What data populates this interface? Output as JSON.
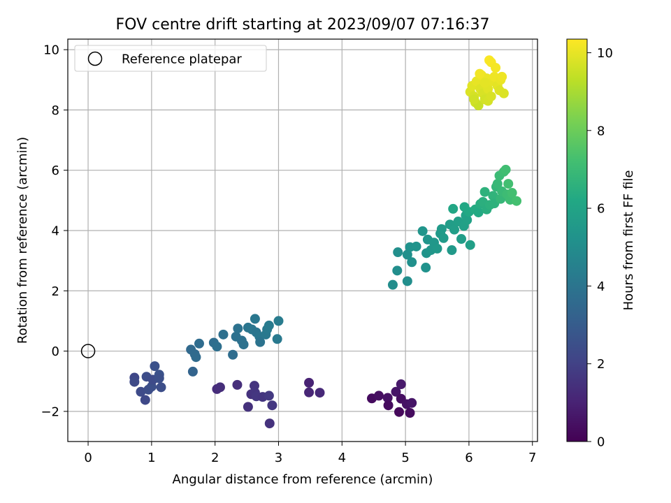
{
  "chart_data": {
    "type": "scatter",
    "title": "FOV centre drift starting at 2023/09/07 07:16:37",
    "xlabel": "Angular distance from reference (arcmin)",
    "ylabel": "Rotation from reference (arcmin)",
    "xlim": [
      -0.32,
      7.08
    ],
    "ylim": [
      -3.0,
      10.35
    ],
    "x_ticks": [
      "0",
      "1",
      "2",
      "3",
      "4",
      "5",
      "6",
      "7"
    ],
    "y_ticks": [
      "−2",
      "0",
      "2",
      "4",
      "6",
      "8",
      "10"
    ],
    "grid": true,
    "legend": {
      "position": "upper-left",
      "entries": [
        "Reference platepar"
      ]
    },
    "colorbar": {
      "label": "Hours from first FF file",
      "colormap": "viridis",
      "range": [
        0,
        10.35
      ],
      "ticks": [
        "0",
        "2",
        "4",
        "6",
        "8",
        "10"
      ]
    },
    "reference_point": {
      "x": 0.0,
      "y": 0.0,
      "style": "open-circle"
    },
    "points": [
      {
        "x": 4.47,
        "y": -1.57,
        "h": 0.3
      },
      {
        "x": 4.58,
        "y": -1.48,
        "h": 0.4
      },
      {
        "x": 4.72,
        "y": -1.55,
        "h": 0.5
      },
      {
        "x": 4.73,
        "y": -1.8,
        "h": 0.3
      },
      {
        "x": 4.85,
        "y": -1.35,
        "h": 0.6
      },
      {
        "x": 4.93,
        "y": -1.1,
        "h": 0.7
      },
      {
        "x": 4.93,
        "y": -1.58,
        "h": 0.4
      },
      {
        "x": 4.9,
        "y": -2.02,
        "h": 0.2
      },
      {
        "x": 5.02,
        "y": -1.76,
        "h": 0.5
      },
      {
        "x": 5.1,
        "y": -1.72,
        "h": 0.6
      },
      {
        "x": 5.07,
        "y": -2.05,
        "h": 0.3
      },
      {
        "x": 3.48,
        "y": -1.05,
        "h": 1.0
      },
      {
        "x": 3.48,
        "y": -1.37,
        "h": 1.1
      },
      {
        "x": 3.65,
        "y": -1.38,
        "h": 1.2
      },
      {
        "x": 2.03,
        "y": -1.26,
        "h": 1.3
      },
      {
        "x": 2.08,
        "y": -1.2,
        "h": 1.35
      },
      {
        "x": 2.35,
        "y": -1.12,
        "h": 1.4
      },
      {
        "x": 2.52,
        "y": -1.85,
        "h": 1.45
      },
      {
        "x": 2.57,
        "y": -1.43,
        "h": 1.5
      },
      {
        "x": 2.62,
        "y": -1.15,
        "h": 1.55
      },
      {
        "x": 2.63,
        "y": -1.38,
        "h": 1.6
      },
      {
        "x": 2.65,
        "y": -1.5,
        "h": 1.65
      },
      {
        "x": 2.75,
        "y": -1.52,
        "h": 1.6
      },
      {
        "x": 2.85,
        "y": -1.48,
        "h": 1.7
      },
      {
        "x": 2.9,
        "y": -1.8,
        "h": 1.65
      },
      {
        "x": 2.86,
        "y": -2.4,
        "h": 1.5
      },
      {
        "x": 0.73,
        "y": -0.88,
        "h": 2.2
      },
      {
        "x": 0.73,
        "y": -1.02,
        "h": 2.3
      },
      {
        "x": 0.83,
        "y": -1.35,
        "h": 2.35
      },
      {
        "x": 0.9,
        "y": -1.62,
        "h": 2.25
      },
      {
        "x": 0.92,
        "y": -0.85,
        "h": 2.4
      },
      {
        "x": 0.95,
        "y": -1.28,
        "h": 2.45
      },
      {
        "x": 1.0,
        "y": -1.18,
        "h": 2.5
      },
      {
        "x": 1.02,
        "y": -0.95,
        "h": 2.35
      },
      {
        "x": 1.05,
        "y": -0.5,
        "h": 2.55
      },
      {
        "x": 1.12,
        "y": -0.78,
        "h": 2.6
      },
      {
        "x": 1.12,
        "y": -0.9,
        "h": 2.5
      },
      {
        "x": 1.15,
        "y": -1.2,
        "h": 2.45
      },
      {
        "x": 1.65,
        "y": -0.68,
        "h": 3.3
      },
      {
        "x": 1.62,
        "y": 0.05,
        "h": 3.5
      },
      {
        "x": 1.68,
        "y": -0.1,
        "h": 3.55
      },
      {
        "x": 1.7,
        "y": -0.2,
        "h": 3.6
      },
      {
        "x": 1.75,
        "y": 0.25,
        "h": 3.65
      },
      {
        "x": 1.98,
        "y": 0.28,
        "h": 3.7
      },
      {
        "x": 2.03,
        "y": 0.15,
        "h": 3.75
      },
      {
        "x": 2.13,
        "y": 0.55,
        "h": 3.8
      },
      {
        "x": 2.28,
        "y": -0.12,
        "h": 3.7
      },
      {
        "x": 2.33,
        "y": 0.48,
        "h": 3.85
      },
      {
        "x": 2.36,
        "y": 0.75,
        "h": 3.9
      },
      {
        "x": 2.42,
        "y": 0.35,
        "h": 3.85
      },
      {
        "x": 2.45,
        "y": 0.22,
        "h": 3.9
      },
      {
        "x": 2.52,
        "y": 0.78,
        "h": 4.0
      },
      {
        "x": 2.58,
        "y": 0.72,
        "h": 4.05
      },
      {
        "x": 2.63,
        "y": 1.07,
        "h": 4.1
      },
      {
        "x": 2.65,
        "y": 0.62,
        "h": 4.0
      },
      {
        "x": 2.7,
        "y": 0.48,
        "h": 4.1
      },
      {
        "x": 2.71,
        "y": 0.3,
        "h": 3.95
      },
      {
        "x": 2.8,
        "y": 0.55,
        "h": 4.15
      },
      {
        "x": 2.82,
        "y": 0.72,
        "h": 4.2
      },
      {
        "x": 2.85,
        "y": 0.85,
        "h": 4.25
      },
      {
        "x": 2.98,
        "y": 0.4,
        "h": 4.2
      },
      {
        "x": 3.0,
        "y": 1.0,
        "h": 4.3
      },
      {
        "x": 4.8,
        "y": 2.2,
        "h": 5.0
      },
      {
        "x": 4.87,
        "y": 2.67,
        "h": 5.05
      },
      {
        "x": 4.88,
        "y": 3.28,
        "h": 5.1
      },
      {
        "x": 5.03,
        "y": 2.32,
        "h": 5.05
      },
      {
        "x": 5.03,
        "y": 3.2,
        "h": 5.15
      },
      {
        "x": 5.07,
        "y": 3.45,
        "h": 5.2
      },
      {
        "x": 5.1,
        "y": 2.95,
        "h": 5.15
      },
      {
        "x": 5.17,
        "y": 3.47,
        "h": 5.25
      },
      {
        "x": 5.27,
        "y": 3.98,
        "h": 5.35
      },
      {
        "x": 5.32,
        "y": 2.77,
        "h": 5.2
      },
      {
        "x": 5.33,
        "y": 3.25,
        "h": 5.3
      },
      {
        "x": 5.35,
        "y": 3.7,
        "h": 5.35
      },
      {
        "x": 5.4,
        "y": 3.35,
        "h": 5.4
      },
      {
        "x": 5.45,
        "y": 3.6,
        "h": 5.45
      },
      {
        "x": 5.5,
        "y": 3.4,
        "h": 5.5
      },
      {
        "x": 5.55,
        "y": 3.9,
        "h": 5.55
      },
      {
        "x": 5.57,
        "y": 4.05,
        "h": 5.6
      },
      {
        "x": 5.6,
        "y": 3.75,
        "h": 5.6
      },
      {
        "x": 5.7,
        "y": 4.2,
        "h": 5.7
      },
      {
        "x": 5.73,
        "y": 3.35,
        "h": 5.55
      },
      {
        "x": 5.77,
        "y": 4.03,
        "h": 5.75
      },
      {
        "x": 5.83,
        "y": 4.3,
        "h": 5.8
      },
      {
        "x": 5.88,
        "y": 3.72,
        "h": 5.7
      },
      {
        "x": 5.92,
        "y": 4.15,
        "h": 5.85
      },
      {
        "x": 5.95,
        "y": 4.5,
        "h": 5.95
      },
      {
        "x": 5.97,
        "y": 4.35,
        "h": 5.9
      },
      {
        "x": 6.02,
        "y": 3.52,
        "h": 5.8
      },
      {
        "x": 5.75,
        "y": 4.72,
        "h": 6.1
      },
      {
        "x": 5.93,
        "y": 4.78,
        "h": 6.15
      },
      {
        "x": 6.0,
        "y": 4.62,
        "h": 6.2
      },
      {
        "x": 6.1,
        "y": 4.7,
        "h": 6.3
      },
      {
        "x": 6.15,
        "y": 4.6,
        "h": 6.25
      },
      {
        "x": 6.18,
        "y": 4.88,
        "h": 6.4
      },
      {
        "x": 6.22,
        "y": 4.95,
        "h": 6.5
      },
      {
        "x": 6.25,
        "y": 5.28,
        "h": 6.6
      },
      {
        "x": 6.28,
        "y": 4.7,
        "h": 6.45
      },
      {
        "x": 6.33,
        "y": 4.85,
        "h": 6.55
      },
      {
        "x": 6.38,
        "y": 5.15,
        "h": 6.7
      },
      {
        "x": 6.4,
        "y": 4.9,
        "h": 6.6
      },
      {
        "x": 6.43,
        "y": 5.45,
        "h": 6.8
      },
      {
        "x": 6.45,
        "y": 5.55,
        "h": 6.9
      },
      {
        "x": 6.48,
        "y": 5.82,
        "h": 7.0
      },
      {
        "x": 6.5,
        "y": 5.05,
        "h": 6.85
      },
      {
        "x": 6.52,
        "y": 5.3,
        "h": 6.95
      },
      {
        "x": 6.55,
        "y": 5.95,
        "h": 7.1
      },
      {
        "x": 6.58,
        "y": 6.02,
        "h": 7.15
      },
      {
        "x": 6.6,
        "y": 5.2,
        "h": 7.05
      },
      {
        "x": 6.62,
        "y": 5.55,
        "h": 7.2
      },
      {
        "x": 6.65,
        "y": 5.02,
        "h": 7.1
      },
      {
        "x": 6.68,
        "y": 5.25,
        "h": 7.2
      },
      {
        "x": 6.75,
        "y": 4.98,
        "h": 7.25
      },
      {
        "x": 6.02,
        "y": 8.6,
        "h": 9.8
      },
      {
        "x": 6.05,
        "y": 8.8,
        "h": 9.9
      },
      {
        "x": 6.08,
        "y": 8.45,
        "h": 9.7
      },
      {
        "x": 6.1,
        "y": 8.25,
        "h": 9.6
      },
      {
        "x": 6.12,
        "y": 8.95,
        "h": 10.0
      },
      {
        "x": 6.15,
        "y": 8.15,
        "h": 9.5
      },
      {
        "x": 6.18,
        "y": 8.7,
        "h": 9.85
      },
      {
        "x": 6.2,
        "y": 9.15,
        "h": 10.1
      },
      {
        "x": 6.22,
        "y": 8.55,
        "h": 9.75
      },
      {
        "x": 6.25,
        "y": 8.35,
        "h": 9.65
      },
      {
        "x": 6.28,
        "y": 9.05,
        "h": 10.05
      },
      {
        "x": 6.3,
        "y": 8.7,
        "h": 9.9
      },
      {
        "x": 6.32,
        "y": 9.65,
        "h": 10.3
      },
      {
        "x": 6.35,
        "y": 9.58,
        "h": 10.25
      },
      {
        "x": 6.38,
        "y": 8.95,
        "h": 10.0
      },
      {
        "x": 6.4,
        "y": 9.1,
        "h": 10.1
      },
      {
        "x": 6.42,
        "y": 9.4,
        "h": 10.2
      },
      {
        "x": 6.45,
        "y": 8.8,
        "h": 9.95
      },
      {
        "x": 6.48,
        "y": 8.65,
        "h": 9.85
      },
      {
        "x": 6.5,
        "y": 9.0,
        "h": 10.05
      },
      {
        "x": 6.52,
        "y": 9.1,
        "h": 10.1
      },
      {
        "x": 6.55,
        "y": 8.55,
        "h": 9.8
      },
      {
        "x": 6.3,
        "y": 8.3,
        "h": 9.7
      },
      {
        "x": 6.25,
        "y": 8.9,
        "h": 9.95
      },
      {
        "x": 6.08,
        "y": 8.35,
        "h": 9.6
      },
      {
        "x": 6.17,
        "y": 9.2,
        "h": 10.15
      },
      {
        "x": 6.35,
        "y": 8.45,
        "h": 9.75
      }
    ]
  }
}
